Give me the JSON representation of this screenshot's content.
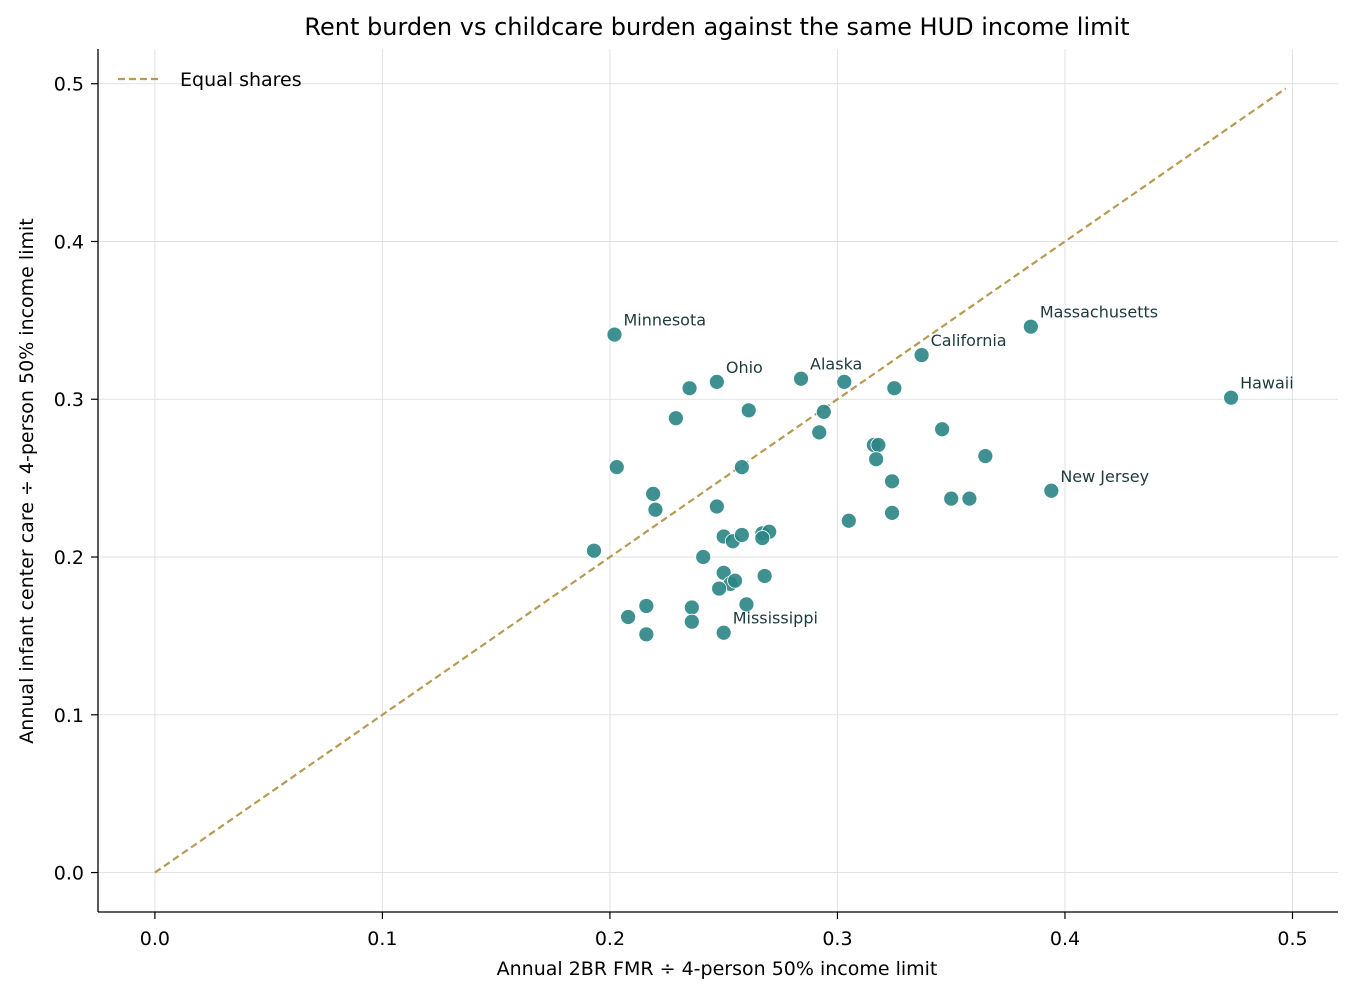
{
  "chart_data": {
    "type": "scatter",
    "title": "Rent burden vs childcare burden against the same HUD income limit",
    "xlabel": "Annual 2BR FMR ÷ 4-person 50% income limit",
    "ylabel": "Annual infant center care ÷ 4-person 50% income limit",
    "xlim": [
      -0.025,
      0.52
    ],
    "ylim": [
      -0.025,
      0.522
    ],
    "x_ticks": [
      0.0,
      0.1,
      0.2,
      0.3,
      0.4,
      0.5
    ],
    "x_tick_labels": [
      "0.0",
      "0.1",
      "0.2",
      "0.3",
      "0.4",
      "0.5"
    ],
    "y_ticks": [
      0.0,
      0.1,
      0.2,
      0.3,
      0.4,
      0.5
    ],
    "y_tick_labels": [
      "0.0",
      "0.1",
      "0.2",
      "0.3",
      "0.4",
      "0.5"
    ],
    "grid": true,
    "legend": {
      "placement": "top-left",
      "entries": [
        "Equal shares"
      ]
    },
    "reference_line": {
      "name": "Equal shares",
      "x": [
        0.0,
        0.497
      ],
      "y": [
        0.0,
        0.497
      ],
      "style": "dashed",
      "color": "#b89a52"
    },
    "point_color": "#2a8585",
    "points": [
      {
        "x": 0.202,
        "y": 0.341,
        "label": "Minnesota"
      },
      {
        "x": 0.247,
        "y": 0.311,
        "label": "Ohio"
      },
      {
        "x": 0.284,
        "y": 0.313,
        "label": "Alaska"
      },
      {
        "x": 0.337,
        "y": 0.328,
        "label": "California"
      },
      {
        "x": 0.385,
        "y": 0.346,
        "label": "Massachusetts"
      },
      {
        "x": 0.473,
        "y": 0.301,
        "label": "Hawaii"
      },
      {
        "x": 0.394,
        "y": 0.242,
        "label": "New Jersey"
      },
      {
        "x": 0.25,
        "y": 0.152,
        "label": "Mississippi"
      },
      {
        "x": 0.235,
        "y": 0.307
      },
      {
        "x": 0.229,
        "y": 0.288
      },
      {
        "x": 0.261,
        "y": 0.293
      },
      {
        "x": 0.303,
        "y": 0.311
      },
      {
        "x": 0.325,
        "y": 0.307
      },
      {
        "x": 0.294,
        "y": 0.292
      },
      {
        "x": 0.292,
        "y": 0.279
      },
      {
        "x": 0.316,
        "y": 0.271
      },
      {
        "x": 0.318,
        "y": 0.271
      },
      {
        "x": 0.317,
        "y": 0.262
      },
      {
        "x": 0.346,
        "y": 0.281
      },
      {
        "x": 0.365,
        "y": 0.264
      },
      {
        "x": 0.203,
        "y": 0.257
      },
      {
        "x": 0.258,
        "y": 0.257
      },
      {
        "x": 0.219,
        "y": 0.24
      },
      {
        "x": 0.22,
        "y": 0.23
      },
      {
        "x": 0.247,
        "y": 0.232
      },
      {
        "x": 0.324,
        "y": 0.248
      },
      {
        "x": 0.35,
        "y": 0.237
      },
      {
        "x": 0.358,
        "y": 0.237
      },
      {
        "x": 0.324,
        "y": 0.228
      },
      {
        "x": 0.305,
        "y": 0.223
      },
      {
        "x": 0.193,
        "y": 0.204
      },
      {
        "x": 0.25,
        "y": 0.213
      },
      {
        "x": 0.254,
        "y": 0.21
      },
      {
        "x": 0.258,
        "y": 0.214
      },
      {
        "x": 0.267,
        "y": 0.215
      },
      {
        "x": 0.27,
        "y": 0.216
      },
      {
        "x": 0.267,
        "y": 0.212
      },
      {
        "x": 0.241,
        "y": 0.2
      },
      {
        "x": 0.25,
        "y": 0.19
      },
      {
        "x": 0.253,
        "y": 0.183
      },
      {
        "x": 0.255,
        "y": 0.185
      },
      {
        "x": 0.248,
        "y": 0.18
      },
      {
        "x": 0.268,
        "y": 0.188
      },
      {
        "x": 0.216,
        "y": 0.169
      },
      {
        "x": 0.236,
        "y": 0.168
      },
      {
        "x": 0.26,
        "y": 0.17
      },
      {
        "x": 0.208,
        "y": 0.162
      },
      {
        "x": 0.236,
        "y": 0.159
      },
      {
        "x": 0.216,
        "y": 0.151
      }
    ]
  }
}
